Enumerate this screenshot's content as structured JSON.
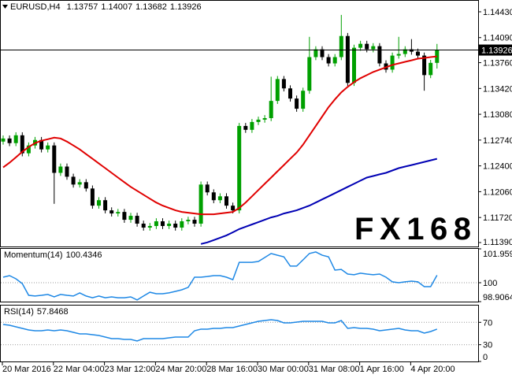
{
  "chart_data": [
    {
      "type": "candlestick",
      "title": "EURUSD,H4",
      "watermark": "FX168",
      "categories": [
        "20 Mar 2016",
        null,
        null,
        null,
        null,
        null,
        null,
        null,
        "22 Mar 04:00",
        null,
        null,
        null,
        null,
        null,
        null,
        null,
        "23 Mar 12:00",
        null,
        null,
        null,
        null,
        null,
        null,
        null,
        "24 Mar 20:00",
        null,
        null,
        null,
        null,
        null,
        null,
        null,
        "28 Mar 16:00",
        null,
        null,
        null,
        null,
        null,
        null,
        null,
        "30 Mar 00:00",
        null,
        null,
        null,
        null,
        null,
        null,
        null,
        "31 Mar 08:00",
        null,
        null,
        null,
        null,
        null,
        null,
        null,
        "1 Apr 16:00",
        null,
        null,
        null,
        null,
        null,
        null,
        null,
        "4 Apr 20:00",
        null,
        null,
        null,
        null
      ],
      "open": [
        1.1272,
        1.12761,
        1.127,
        1.12803,
        1.12566,
        1.12669,
        1.12741,
        1.12617,
        1.12669,
        1.12308,
        1.12391,
        1.12257,
        1.12154,
        1.12185,
        1.12102,
        1.11876,
        1.11948,
        1.11814,
        1.11773,
        1.11793,
        1.1169,
        1.11742,
        1.11639,
        1.11587,
        1.11608,
        1.1167,
        1.11608,
        1.11639,
        1.11587,
        1.1167,
        1.1169,
        1.11639,
        1.12154,
        1.12051,
        1.11948,
        1.11999,
        1.11876,
        1.11814,
        1.12926,
        1.12875,
        1.12978,
        1.13009,
        1.13029,
        1.13256,
        1.13544,
        1.13421,
        1.13287,
        1.13153,
        1.1339,
        1.13833,
        1.13936,
        1.13833,
        1.1375,
        1.13833,
        1.14111,
        1.13493,
        1.13956,
        1.14008,
        1.13936,
        1.13977,
        1.1375,
        1.13668,
        1.13853,
        1.13874,
        1.13936,
        1.13905,
        1.13853,
        1.13596,
        1.13757
      ],
      "high": [
        1.12801,
        1.12801,
        1.12843,
        1.12843,
        1.12709,
        1.12781,
        1.12781,
        1.12709,
        1.12709,
        1.12431,
        1.12431,
        1.12297,
        1.12225,
        1.12225,
        1.12142,
        1.11988,
        1.11988,
        1.11854,
        1.11833,
        1.11833,
        1.11782,
        1.11782,
        1.11679,
        1.11648,
        1.1171,
        1.1171,
        1.11679,
        1.11679,
        1.1171,
        1.1173,
        1.1173,
        1.12194,
        1.12194,
        1.12091,
        1.12039,
        1.12039,
        1.11916,
        1.12966,
        1.12966,
        1.13018,
        1.13049,
        1.13069,
        1.13575,
        1.13584,
        1.13584,
        1.13461,
        1.13327,
        1.1343,
        1.141,
        1.13976,
        1.13976,
        1.13873,
        1.13873,
        1.14389,
        1.14151,
        1.13996,
        1.14048,
        1.14048,
        1.14017,
        1.14017,
        1.1379,
        1.13893,
        1.141,
        1.13976,
        1.1407,
        1.13945,
        1.13893,
        1.13797,
        1.14007
      ],
      "low": [
        1.1268,
        1.1266,
        1.1266,
        1.12526,
        1.12526,
        1.12629,
        1.12577,
        1.12577,
        1.119,
        1.12268,
        1.12217,
        1.12114,
        1.12114,
        1.12062,
        1.11836,
        1.11836,
        1.11774,
        1.11733,
        1.11733,
        1.1165,
        1.1165,
        1.11599,
        1.11547,
        1.11547,
        1.11568,
        1.11568,
        1.11568,
        1.11547,
        1.11547,
        1.1163,
        1.11599,
        1.11599,
        1.12011,
        1.11908,
        1.11908,
        1.11836,
        1.11774,
        1.11774,
        1.12835,
        1.12835,
        1.12938,
        1.12969,
        1.12989,
        1.13216,
        1.13381,
        1.13247,
        1.13113,
        1.13113,
        1.1335,
        1.13793,
        1.13793,
        1.1371,
        1.1371,
        1.13793,
        1.13453,
        1.13453,
        1.13916,
        1.13896,
        1.13896,
        1.1371,
        1.13628,
        1.13628,
        1.13813,
        1.13834,
        1.13865,
        1.13813,
        1.1339,
        1.13556,
        1.13682
      ],
      "close": [
        1.12761,
        1.127,
        1.12803,
        1.12566,
        1.12669,
        1.12741,
        1.12617,
        1.12669,
        1.12308,
        1.12391,
        1.12257,
        1.12154,
        1.12185,
        1.12102,
        1.11876,
        1.11948,
        1.11814,
        1.11773,
        1.11793,
        1.1169,
        1.11742,
        1.11639,
        1.11587,
        1.11608,
        1.1167,
        1.11608,
        1.11639,
        1.11587,
        1.1167,
        1.1169,
        1.11639,
        1.12154,
        1.12051,
        1.11948,
        1.11999,
        1.11876,
        1.11814,
        1.12926,
        1.12875,
        1.12978,
        1.13009,
        1.13029,
        1.13256,
        1.13544,
        1.13421,
        1.13287,
        1.13153,
        1.1339,
        1.13833,
        1.13936,
        1.13833,
        1.1375,
        1.13833,
        1.14111,
        1.13493,
        1.13956,
        1.14008,
        1.13936,
        1.13977,
        1.1375,
        1.13668,
        1.13853,
        1.13874,
        1.13936,
        1.13905,
        1.13853,
        1.13596,
        1.13757,
        1.13926
      ],
      "up_color": "#00a000",
      "down_color": "#000000",
      "series": [
        {
          "color": "#e00000",
          "values": [
            1.1238,
            1.12442,
            1.12514,
            1.12586,
            1.12648,
            1.127,
            1.12731,
            1.12751,
            1.12772,
            1.12761,
            1.1272,
            1.12669,
            1.12617,
            1.12555,
            1.12494,
            1.12432,
            1.1237,
            1.12308,
            1.12246,
            1.12185,
            1.12123,
            1.12071,
            1.1202,
            1.11968,
            1.11917,
            1.11876,
            1.11845,
            1.11814,
            1.11793,
            1.11783,
            1.11773,
            1.11762,
            1.11762,
            1.11762,
            1.11773,
            1.11783,
            1.11793,
            1.11845,
            1.11917,
            1.11999,
            1.12082,
            1.12164,
            1.12246,
            1.12329,
            1.12411,
            1.12494,
            1.12576,
            1.12679,
            1.12803,
            1.12926,
            1.1305,
            1.13173,
            1.13276,
            1.13369,
            1.13441,
            1.13503,
            1.13555,
            1.13596,
            1.13637,
            1.13668,
            1.13699,
            1.1373,
            1.1375,
            1.13771,
            1.13791,
            1.13812,
            1.13822,
            1.13833,
            1.13843
          ]
        },
        {
          "color": "#0000b4",
          "values": [
            null,
            null,
            null,
            null,
            null,
            null,
            null,
            null,
            null,
            null,
            null,
            null,
            null,
            null,
            null,
            null,
            null,
            null,
            null,
            null,
            null,
            null,
            null,
            null,
            null,
            null,
            null,
            null,
            null,
            null,
            null,
            1.11371,
            1.11392,
            1.11422,
            1.11453,
            1.11484,
            1.11525,
            1.11567,
            1.11598,
            1.11628,
            1.11659,
            1.1169,
            1.11721,
            1.11742,
            1.11773,
            1.11793,
            1.11814,
            1.11845,
            1.11876,
            1.11917,
            1.11958,
            1.11999,
            1.1204,
            1.12082,
            1.12123,
            1.12164,
            1.12205,
            1.12246,
            1.12267,
            1.12288,
            1.12308,
            1.12339,
            1.1237,
            1.12391,
            1.12411,
            1.12432,
            1.12452,
            1.12473,
            1.12494
          ]
        }
      ],
      "ylim": [
        1.11338,
        1.14575
      ],
      "yticks": [
        {
          "value": 1.1443,
          "label": "1.14430"
        },
        {
          "value": 1.1409,
          "label": "1.14090"
        },
        {
          "value": 1.1376,
          "label": "1.13760"
        },
        {
          "value": 1.1342,
          "label": "1.13420"
        },
        {
          "value": 1.1308,
          "label": "1.13080"
        },
        {
          "value": 1.1274,
          "label": "1.12740"
        },
        {
          "value": 1.124,
          "label": "1.12400"
        },
        {
          "value": 1.1206,
          "label": "1.12060"
        },
        {
          "value": 1.1172,
          "label": "1.11720"
        },
        {
          "value": 1.1139,
          "label": "1.11390"
        }
      ],
      "last_price_line": true
    },
    {
      "type": "line",
      "title": "Momentum(14)",
      "color": "#1e88e5",
      "values": [
        100.32,
        100.41,
        100.23,
        99.95,
        99.27,
        99.23,
        99.27,
        99.32,
        99.18,
        99.32,
        99.27,
        99.23,
        99.41,
        99.23,
        99.13,
        99.23,
        99.13,
        99.18,
        99.13,
        99.13,
        99.18,
        99.0,
        99.23,
        99.45,
        99.36,
        99.36,
        99.41,
        99.5,
        99.59,
        99.73,
        100.32,
        100.32,
        100.36,
        100.41,
        100.41,
        100.32,
        100.18,
        101.18,
        101.18,
        101.18,
        101.23,
        101.46,
        101.69,
        101.59,
        101.5,
        100.96,
        100.96,
        101.32,
        101.69,
        101.78,
        101.59,
        101.5,
        100.73,
        100.77,
        100.5,
        100.46,
        100.55,
        100.5,
        100.46,
        100.5,
        100.32,
        100.05,
        100.0,
        100.05,
        100.09,
        100.05,
        99.77,
        99.77,
        100.4346
      ],
      "ylim": [
        98.9064,
        101.9595
      ],
      "yticks": [
        101.9595,
        100,
        98.9064
      ]
    },
    {
      "type": "line",
      "title": "RSI(14)",
      "color": "#1e88e5",
      "values": [
        66.2,
        64.8,
        62.0,
        59.2,
        56.3,
        54.9,
        54.9,
        56.3,
        54.9,
        56.3,
        54.9,
        52.1,
        49.3,
        49.3,
        47.9,
        46.5,
        43.7,
        40.8,
        40.8,
        39.4,
        39.4,
        36.6,
        40.8,
        40.8,
        40.8,
        40.8,
        42.3,
        43.7,
        43.7,
        43.7,
        54.9,
        57.7,
        57.7,
        59.2,
        59.2,
        60.6,
        60.6,
        63.4,
        66.2,
        69.0,
        71.8,
        73.2,
        74.6,
        73.2,
        69.0,
        69.0,
        70.4,
        71.8,
        71.8,
        71.8,
        71.8,
        69.0,
        69.0,
        73.2,
        59.2,
        60.6,
        59.2,
        59.2,
        57.7,
        54.9,
        56.3,
        57.7,
        59.2,
        56.3,
        54.9,
        54.9,
        50.7,
        53.5,
        57.8468
      ],
      "ylim": [
        0,
        100
      ],
      "yticks": [
        70,
        30,
        0
      ]
    }
  ]
}
